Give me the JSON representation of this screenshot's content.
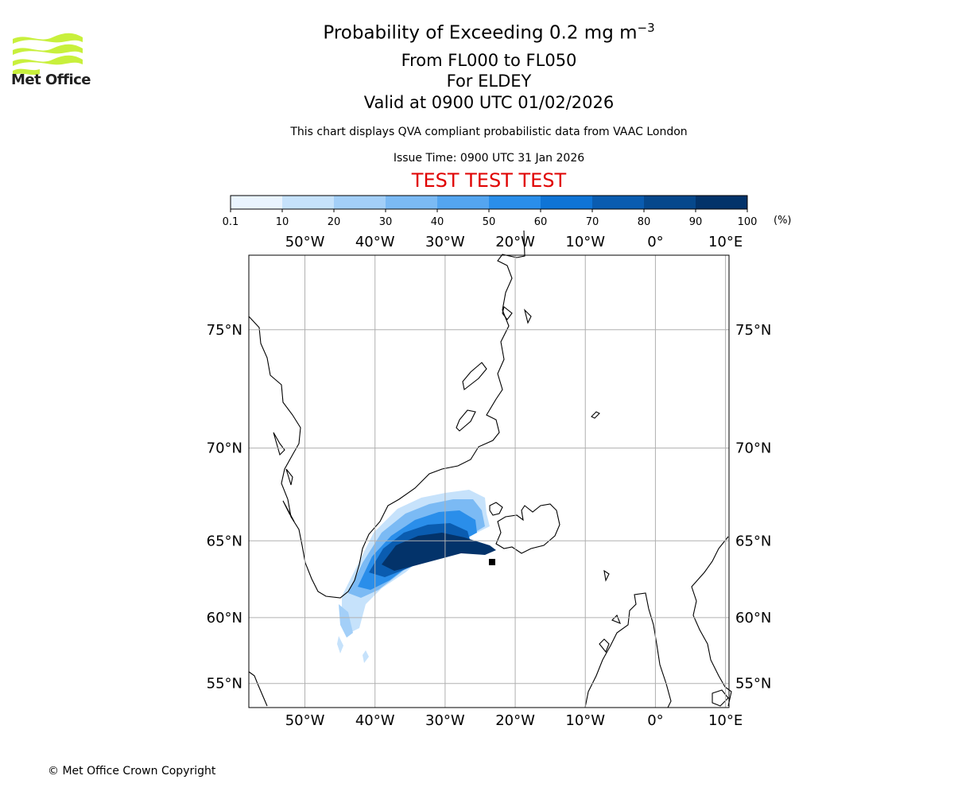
{
  "header": {
    "title_main": "Probability of Exceeding 0.2 mg m",
    "title_sup": "−3",
    "levels": "From FL000 to FL050",
    "location": "For ELDEY",
    "valid": "Valid at 0900 UTC 01/02/2026",
    "description": "This chart displays QVA compliant probabilistic data from VAAC London",
    "issue_time": "Issue Time: 0900 UTC 31 Jan 2026",
    "test_banner": "TEST TEST TEST"
  },
  "logo": {
    "text": "Met Office",
    "color": "#c8f03c"
  },
  "colorbar": {
    "ticks": [
      "0.1",
      "10",
      "20",
      "30",
      "40",
      "50",
      "60",
      "70",
      "80",
      "90",
      "100"
    ],
    "unit": "(%)",
    "colors": [
      "#eaf4fe",
      "#c6e2fb",
      "#a3cff8",
      "#7bbaf4",
      "#54a5f0",
      "#2a8eea",
      "#0f74d6",
      "#0a5cb0",
      "#06488c",
      "#03336a"
    ]
  },
  "map": {
    "lon_labels": [
      "50°W",
      "40°W",
      "30°W",
      "20°W",
      "10°W",
      "0°",
      "10°E"
    ],
    "lat_labels": [
      "75°N",
      "70°N",
      "65°N",
      "60°N",
      "55°N"
    ],
    "lon_values": [
      -50,
      -40,
      -30,
      -20,
      -10,
      0,
      10
    ],
    "lat_values": [
      75,
      70,
      65,
      60,
      55
    ],
    "extent": {
      "lon_min": -58,
      "lon_max": 10.5,
      "lat_min": 53,
      "lat_max": 77.5
    },
    "source": {
      "name": "ELDEY",
      "lon": -23.3,
      "lat": 63.7
    }
  },
  "footer": {
    "copyright": "© Met Office Crown Copyright"
  }
}
